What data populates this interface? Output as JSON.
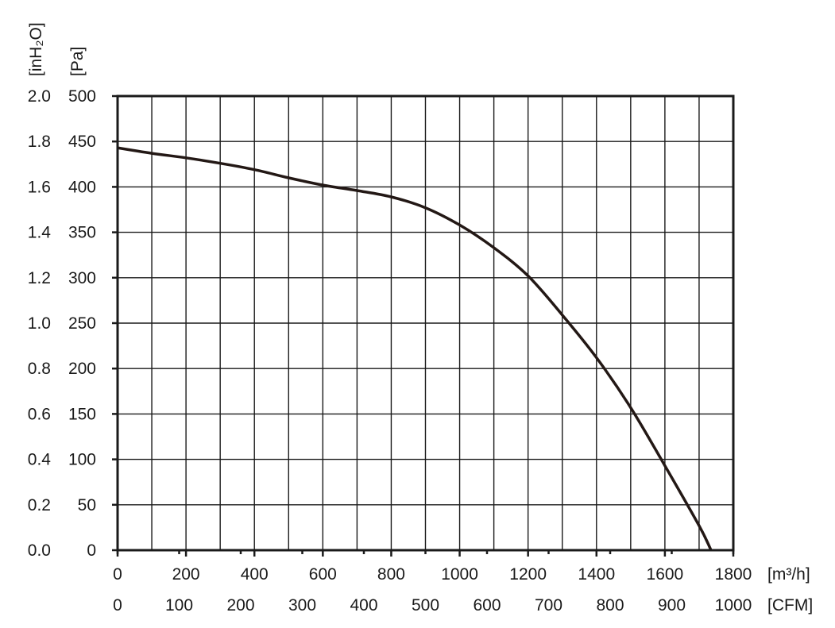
{
  "chart_data": {
    "type": "line",
    "title": "",
    "series": [
      {
        "x": [
          0,
          100,
          200,
          300,
          400,
          500,
          600,
          700,
          800,
          900,
          1000,
          1100,
          1200,
          1300,
          1400,
          1500,
          1600,
          1700,
          1735
        ],
        "y": [
          443,
          437,
          432,
          426,
          419,
          410,
          402,
          396,
          389,
          377,
          358,
          333,
          302,
          259,
          212,
          157,
          93,
          27,
          0
        ]
      }
    ],
    "axes": {
      "x_primary": {
        "unit": "[m³/h]",
        "min": 0,
        "max": 1800,
        "ticks": [
          "0",
          "200",
          "400",
          "600",
          "800",
          "1000",
          "1200",
          "1400",
          "1600",
          "1800"
        ]
      },
      "x_secondary": {
        "unit": "[CFM]",
        "min": 0,
        "max": 1000,
        "ticks": [
          "0",
          "100",
          "200",
          "300",
          "400",
          "500",
          "600",
          "700",
          "800",
          "900",
          "1000"
        ]
      },
      "y_primary": {
        "unit": "[Pa]",
        "min": 0,
        "max": 500,
        "ticks": [
          "0",
          "50",
          "100",
          "150",
          "200",
          "250",
          "300",
          "350",
          "400",
          "450",
          "500"
        ]
      },
      "y_secondary": {
        "unit": "[inH₂O]",
        "min": 0,
        "max": 2.0,
        "ticks": [
          "0.0",
          "0.2",
          "0.4",
          "0.6",
          "0.8",
          "1.0",
          "1.2",
          "1.4",
          "1.6",
          "1.8",
          "2.0"
        ]
      }
    },
    "grid": true,
    "legend": "none",
    "colors": {
      "curve": "#231815",
      "grid": "#1a1a1a"
    }
  }
}
